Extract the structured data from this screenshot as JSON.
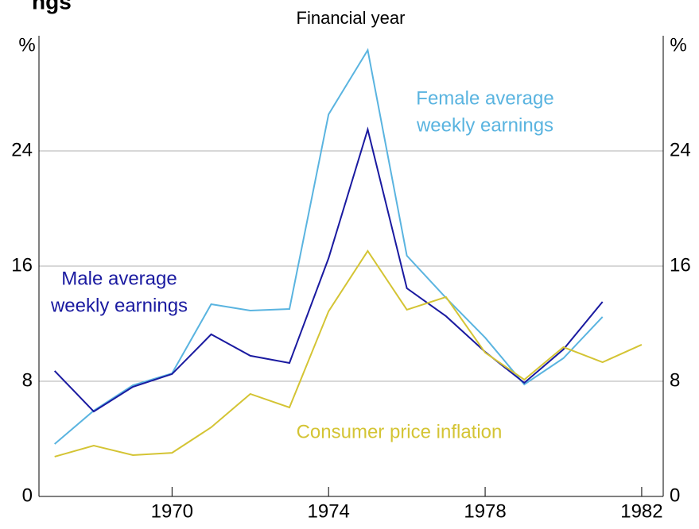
{
  "chart_data": {
    "type": "line",
    "title": "ngs",
    "subtitle": "Financial year",
    "y_label": "%",
    "y2_label": "%",
    "x": [
      1967,
      1968,
      1969,
      1970,
      1971,
      1972,
      1973,
      1974,
      1975,
      1976,
      1977,
      1978,
      1979,
      1980,
      1981,
      1982
    ],
    "xlim": [
      1966.6,
      1982.55
    ],
    "xticks": [
      1970,
      1974,
      1978,
      1982
    ],
    "ylim": [
      0,
      32
    ],
    "yticks": [
      0,
      8,
      16,
      24
    ],
    "y2lim": [
      0,
      32
    ],
    "y2ticks": [
      0,
      8,
      16,
      24
    ],
    "grid": true,
    "series": [
      {
        "name": "Female average weekly earnings",
        "color": "#5ab4e0",
        "values": [
          3.64,
          5.96,
          7.72,
          8.55,
          13.35,
          12.91,
          13.02,
          26.54,
          31.0,
          16.72,
          13.79,
          11.03,
          7.78,
          9.6,
          12.47,
          null
        ]
      },
      {
        "name": "Male average weekly earnings",
        "color": "#1a1aa0",
        "values": [
          8.72,
          5.9,
          7.61,
          8.5,
          11.26,
          9.77,
          9.27,
          16.55,
          25.49,
          14.46,
          12.52,
          10.04,
          7.89,
          10.21,
          13.52,
          null
        ]
      },
      {
        "name": "Consumer price inflation",
        "color": "#d4c434",
        "values": [
          2.76,
          3.53,
          2.87,
          3.03,
          4.8,
          7.12,
          6.18,
          12.86,
          17.05,
          12.97,
          13.85,
          9.99,
          8.11,
          10.37,
          9.32,
          10.54
        ]
      }
    ],
    "annotations": [
      {
        "lines": [
          "Female average",
          "weekly earnings"
        ],
        "color": "#5ab4e0"
      },
      {
        "lines": [
          "Male average",
          "weekly earnings"
        ],
        "color": "#1a1aa0"
      },
      {
        "lines": [
          "Consumer price inflation"
        ],
        "color": "#d4c434"
      }
    ]
  }
}
